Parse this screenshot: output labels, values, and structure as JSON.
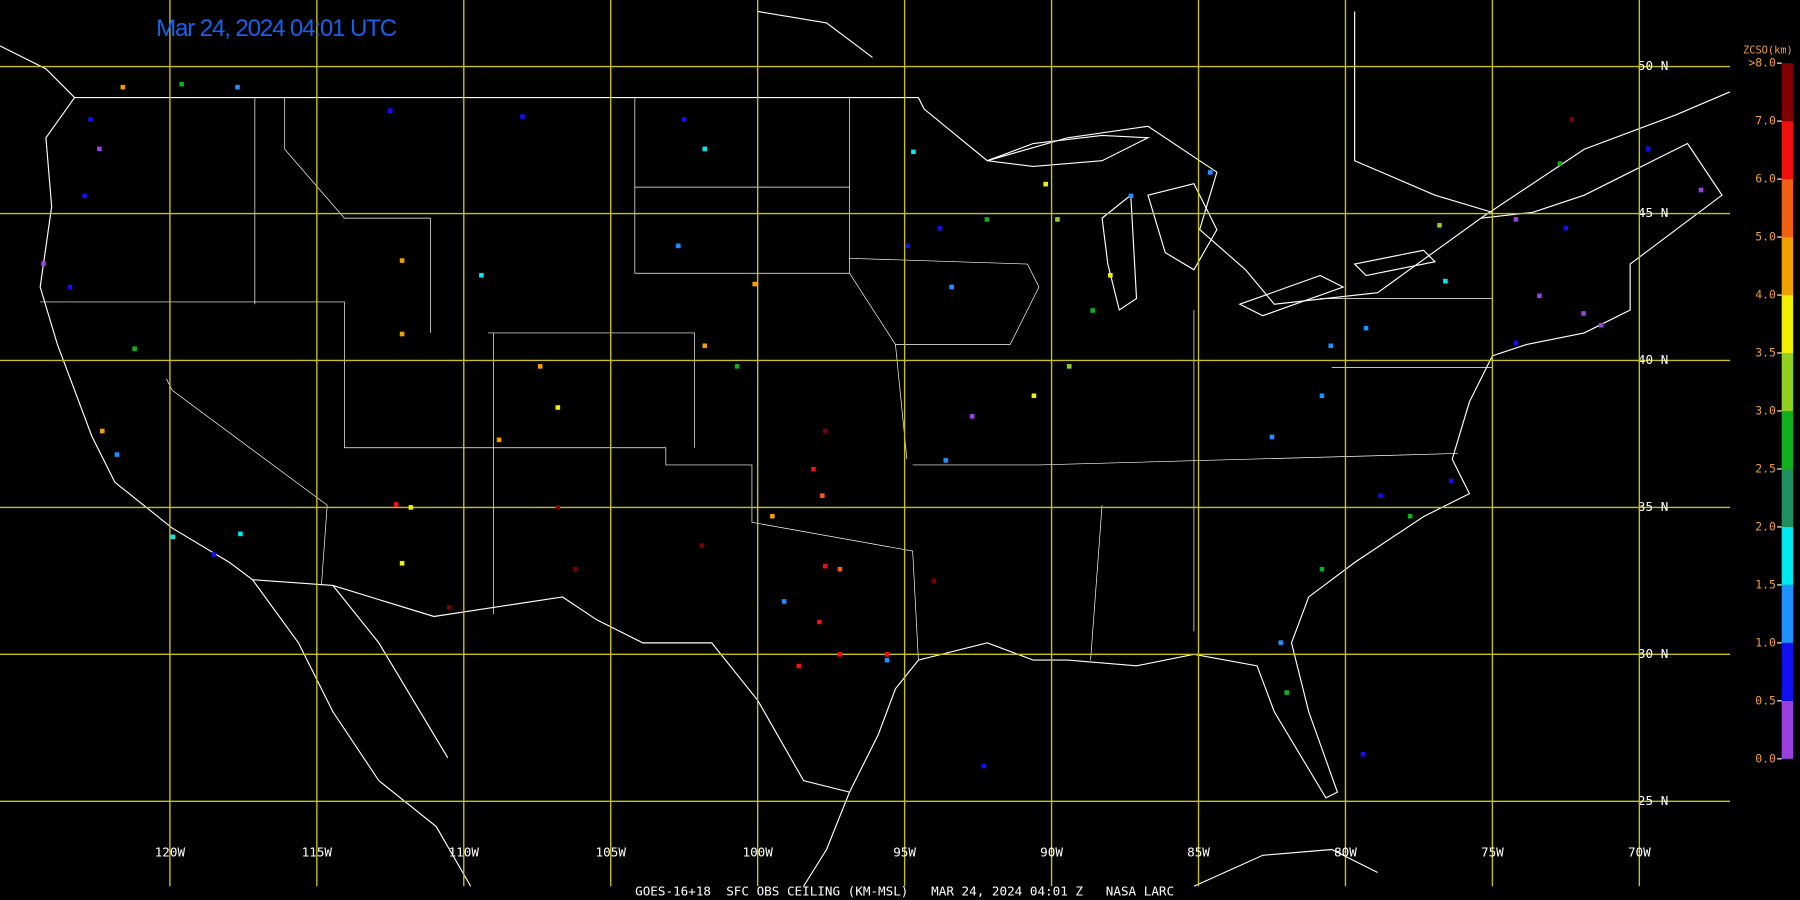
{
  "title": "Mar 24, 2024 04:01 UTC",
  "footer": "GOES-16+18  SFC OBS CEILING (KM-MSL)   MAR 24, 2024 04:01 Z   NASA LARC",
  "lat_lines": [
    {
      "value": 50,
      "label": "50 N"
    },
    {
      "value": 45,
      "label": "45 N"
    },
    {
      "value": 40,
      "label": "40 N"
    },
    {
      "value": 35,
      "label": "35 N"
    },
    {
      "value": 30,
      "label": "30 N"
    },
    {
      "value": 25,
      "label": "25 N"
    }
  ],
  "lon_lines": [
    {
      "value": -120,
      "label": "120W"
    },
    {
      "value": -115,
      "label": "115W"
    },
    {
      "value": -110,
      "label": "110W"
    },
    {
      "value": -105,
      "label": "105W"
    },
    {
      "value": -100,
      "label": "100W"
    },
    {
      "value": -95,
      "label": "95W"
    },
    {
      "value": -90,
      "label": "90W"
    },
    {
      "value": -85,
      "label": "85W"
    },
    {
      "value": -80,
      "label": "80W"
    },
    {
      "value": -75,
      "label": "75W"
    },
    {
      "value": -70,
      "label": "70W"
    }
  ],
  "colorbar": {
    "title": "ZCSO(km)",
    "ticks": [
      {
        "value": 0,
        "label": "0.0"
      },
      {
        "value": 0.5,
        "label": "0.5"
      },
      {
        "value": 1,
        "label": "1.0"
      },
      {
        "value": 1.5,
        "label": "1.5"
      },
      {
        "value": 2,
        "label": "2.0"
      },
      {
        "value": 2.5,
        "label": "2.5"
      },
      {
        "value": 3,
        "label": "3.0"
      },
      {
        "value": 3.5,
        "label": "3.5"
      },
      {
        "value": 4,
        "label": "4.0"
      },
      {
        "value": 5,
        "label": "5.0"
      },
      {
        "value": 6,
        "label": "6.0"
      },
      {
        "value": 7,
        "label": "7.0"
      },
      {
        "value": 8,
        "label": ">8.0"
      }
    ],
    "colors": [
      "#9a40e0",
      "#1010f0",
      "#1e90ff",
      "#00e8f0",
      "#209060",
      "#10b020",
      "#90d020",
      "#f0f000",
      "#f0a000",
      "#f06010",
      "#f01010",
      "#800000"
    ]
  },
  "stations": {
    "lon": [
      -121.6,
      -119.6,
      -117.7,
      -122.7,
      -122.4,
      -122.9,
      -124.3,
      -123.4,
      -121.2,
      -122.3,
      -121.8,
      -119.9,
      -117.6,
      -118.5,
      -112.1,
      -112.5,
      -108.0,
      -112.1,
      -109.4,
      -107.4,
      -106.8,
      -108.8,
      -112.3,
      -111.8,
      -112.1,
      -106.8,
      -110.5,
      -106.2,
      -102.5,
      -101.8,
      -102.7,
      -100.1,
      -100.7,
      -101.8,
      -97.7,
      -98.1,
      -97.8,
      -99.5,
      -101.9,
      -97.7,
      -97.2,
      -99.1,
      -97.9,
      -98.6,
      -97.2,
      -95.6,
      -95.6,
      -94.0,
      -92.3,
      -94.7,
      -94.9,
      -93.8,
      -93.4,
      -92.2,
      -90.2,
      -89.8,
      -88.0,
      -88.6,
      -89.4,
      -90.6,
      -92.7,
      -93.6,
      -84.6,
      -87.3,
      -80.5,
      -79.3,
      -76.6,
      -82.5,
      -80.8,
      -78.8,
      -76.4,
      -77.8,
      -80.8,
      -82.2,
      -82.0,
      -79.4,
      -74.2,
      -73.4,
      -71.9,
      -71.3,
      -72.5,
      -74.2,
      -69.7,
      -67.9,
      -72.3,
      -72.7,
      -76.8
    ],
    "lat": [
      49.3,
      49.4,
      49.3,
      48.2,
      47.2,
      45.6,
      43.3,
      42.5,
      40.4,
      37.6,
      36.8,
      34.0,
      34.1,
      33.4,
      40.9,
      48.5,
      48.3,
      43.4,
      42.9,
      39.8,
      38.4,
      37.3,
      35.1,
      35.0,
      33.1,
      35.0,
      31.6,
      32.9,
      48.2,
      47.2,
      43.9,
      42.6,
      39.8,
      40.5,
      37.6,
      36.3,
      35.4,
      34.7,
      33.7,
      33.0,
      32.9,
      31.8,
      31.1,
      29.6,
      30.0,
      30.0,
      29.8,
      32.5,
      26.2,
      47.1,
      43.9,
      44.5,
      42.5,
      44.8,
      46.0,
      44.8,
      42.9,
      41.7,
      39.8,
      38.8,
      38.1,
      36.6,
      46.4,
      45.6,
      40.5,
      41.1,
      42.7,
      37.4,
      38.8,
      35.4,
      35.9,
      34.7,
      32.9,
      30.4,
      28.7,
      26.6,
      40.6,
      42.2,
      41.6,
      41.2,
      44.5,
      44.8,
      47.2,
      45.8,
      48.2,
      46.7,
      44.6
    ],
    "values": [
      4.5,
      2.8,
      1.2,
      0.8,
      0.3,
      0.8,
      0.3,
      0.8,
      2.8,
      4.5,
      1.2,
      1.8,
      1.8,
      0.8,
      4.5,
      0.8,
      0.8,
      4.5,
      1.8,
      4.5,
      3.7,
      4.5,
      6.5,
      3.7,
      3.7,
      7.5,
      7.5,
      7.5,
      0.8,
      1.8,
      1.2,
      4.5,
      2.8,
      4.5,
      7.5,
      6.5,
      5.5,
      4.5,
      7.5,
      6.5,
      5.5,
      1.2,
      6.5,
      6.5,
      6.5,
      6.5,
      1.2,
      7.5,
      0.8,
      1.8,
      0.8,
      0.8,
      1.2,
      2.8,
      3.7,
      3.2,
      3.7,
      2.8,
      3.2,
      3.7,
      0.3,
      1.2,
      1.2,
      1.2,
      1.2,
      1.2,
      1.8,
      1.2,
      1.2,
      0.8,
      0.8,
      2.8,
      2.8,
      1.2,
      2.8,
      0.8,
      0.8,
      0.3,
      0.3,
      0.3,
      0.8,
      0.3,
      0.8,
      0.3,
      7.5,
      2.8,
      3.2
    ]
  }
}
